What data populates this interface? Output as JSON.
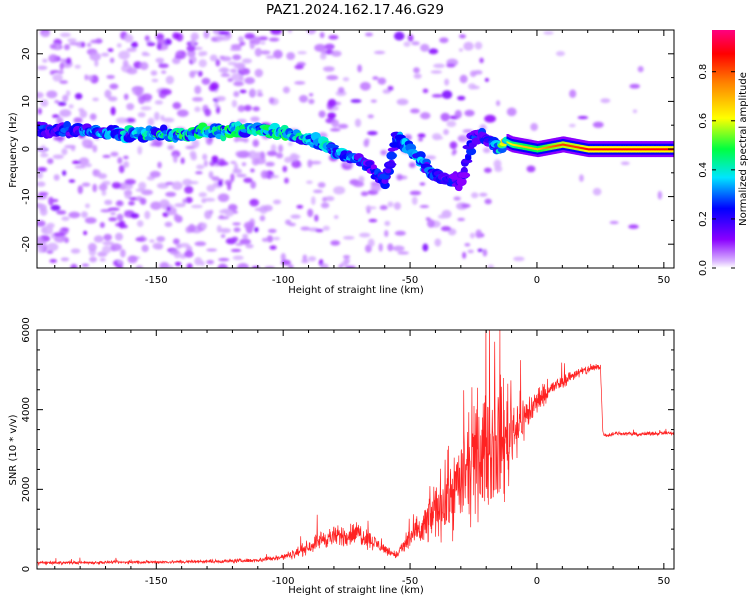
{
  "title": "PAZ1.2024.162.17.46.G29",
  "chart_data": [
    {
      "type": "heatmap",
      "xlabel": "Height of straight line (km)",
      "ylabel": "Frequency (Hz)",
      "xlim": [
        -197,
        54
      ],
      "ylim": [
        -25,
        25
      ],
      "xticks": [
        -150,
        -100,
        -50,
        0,
        50
      ],
      "yticks": [
        -20,
        -10,
        0,
        10,
        20
      ],
      "colorbar": {
        "label": "Normalized spectral amplitude",
        "ticks": [
          0.0,
          0.2,
          0.4,
          0.6,
          0.8
        ],
        "range": [
          0,
          0.97
        ],
        "colormap": [
          "#ffffff",
          "#8a00ff",
          "#0000ff",
          "#00e5ff",
          "#00ff00",
          "#ffff00",
          "#ff8000",
          "#ff0000",
          "#ff0080"
        ]
      },
      "ridge": {
        "x": [
          -190,
          -175,
          -160,
          -150,
          -140,
          -130,
          -120,
          -110,
          -100,
          -90,
          -80,
          -75,
          -70,
          -65,
          -60,
          -55,
          -50,
          -45,
          -40,
          -35,
          -30,
          -25,
          -20,
          -15,
          -12,
          -10,
          -5,
          0,
          5,
          10,
          15,
          20,
          25,
          30,
          40,
          54
        ],
        "y": [
          4,
          3.5,
          3,
          3,
          3,
          3.5,
          4,
          4,
          3.5,
          2,
          0,
          -1.5,
          -2.5,
          -4,
          -7,
          3,
          0,
          -3,
          -5.5,
          -6,
          -7,
          3,
          2,
          0,
          1.5,
          1,
          0.5,
          0,
          0.5,
          1,
          0.5,
          0,
          0,
          0,
          0,
          0
        ],
        "intensity": [
          0.2,
          0.25,
          0.3,
          0.35,
          0.35,
          0.35,
          0.35,
          0.35,
          0.35,
          0.3,
          0.3,
          0.25,
          0.25,
          0.2,
          0.2,
          0.25,
          0.3,
          0.25,
          0.2,
          0.2,
          0.15,
          0.2,
          0.2,
          0.3,
          0.6,
          0.65,
          0.7,
          0.7,
          0.8,
          0.85,
          0.85,
          0.9,
          0.9,
          0.9,
          0.9,
          0.9
        ]
      }
    },
    {
      "type": "line",
      "xlabel": "Height of straight line (km)",
      "ylabel": "SNR (10 * v/v)",
      "xlim": [
        -197,
        54
      ],
      "ylim": [
        0,
        6000
      ],
      "xticks": [
        -150,
        -100,
        -50,
        0,
        50
      ],
      "yticks": [
        0,
        2000,
        4000,
        6000
      ],
      "series": [
        {
          "color": "#ff2222",
          "x": [
            -197,
            -180,
            -160,
            -140,
            -120,
            -110,
            -105,
            -100,
            -95,
            -90,
            -85,
            -80,
            -75,
            -70,
            -65,
            -60,
            -57,
            -55,
            -50,
            -45,
            -40,
            -35,
            -30,
            -25,
            -20,
            -15,
            -12,
            -10,
            -5,
            0,
            5,
            10,
            15,
            20,
            25,
            26,
            28,
            30,
            35,
            40,
            45,
            50,
            54
          ],
          "y": [
            150,
            160,
            170,
            180,
            200,
            220,
            260,
            300,
            400,
            550,
            750,
            800,
            850,
            900,
            700,
            500,
            400,
            350,
            800,
            1000,
            1500,
            1800,
            2200,
            2600,
            3000,
            3200,
            3300,
            3500,
            3800,
            4200,
            4500,
            4700,
            4900,
            5000,
            5100,
            3400,
            3350,
            3400,
            3400,
            3380,
            3400,
            3420,
            3400
          ],
          "noise": [
            60,
            60,
            60,
            60,
            70,
            80,
            100,
            120,
            180,
            250,
            330,
            380,
            420,
            450,
            320,
            180,
            150,
            150,
            500,
            700,
            1100,
            1400,
            1700,
            1900,
            2100,
            2300,
            2400,
            1400,
            800,
            500,
            300,
            250,
            200,
            180,
            150,
            70,
            70,
            70,
            70,
            70,
            70,
            70,
            70
          ]
        }
      ]
    }
  ]
}
